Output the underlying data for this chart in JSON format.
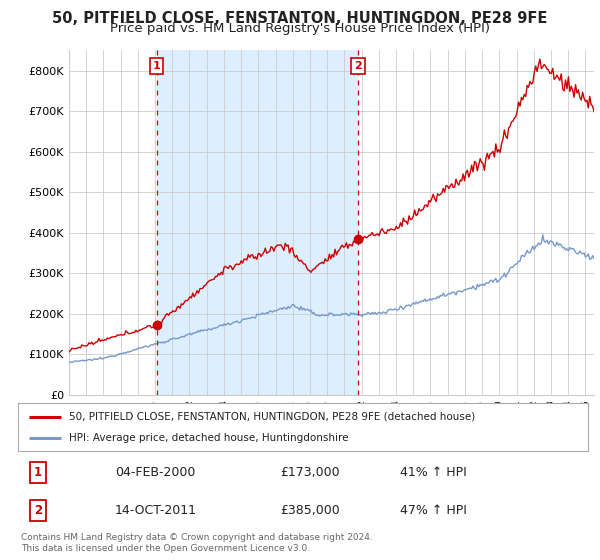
{
  "title": "50, PITFIELD CLOSE, FENSTANTON, HUNTINGDON, PE28 9FE",
  "subtitle": "Price paid vs. HM Land Registry's House Price Index (HPI)",
  "background_color": "#ffffff",
  "grid_color": "#cccccc",
  "yticks": [
    0,
    100000,
    200000,
    300000,
    400000,
    500000,
    600000,
    700000,
    800000
  ],
  "ytick_labels": [
    "£0",
    "£100K",
    "£200K",
    "£300K",
    "£400K",
    "£500K",
    "£600K",
    "£700K",
    "£800K"
  ],
  "ylim": [
    0,
    850000
  ],
  "xlim_start": 1995.0,
  "xlim_end": 2025.5,
  "sale1_x": 2000.09,
  "sale1_y": 173000,
  "sale1_label": "1",
  "sale1_date": "04-FEB-2000",
  "sale1_price": "£173,000",
  "sale1_hpi": "41% ↑ HPI",
  "sale2_x": 2011.79,
  "sale2_y": 385000,
  "sale2_label": "2",
  "sale2_date": "14-OCT-2011",
  "sale2_price": "£385,000",
  "sale2_hpi": "47% ↑ HPI",
  "line1_color": "#cc0000",
  "line2_color": "#7799cc",
  "shade_color": "#ddeeff",
  "legend1_label": "50, PITFIELD CLOSE, FENSTANTON, HUNTINGDON, PE28 9FE (detached house)",
  "legend2_label": "HPI: Average price, detached house, Huntingdonshire",
  "footer": "Contains HM Land Registry data © Crown copyright and database right 2024.\nThis data is licensed under the Open Government Licence v3.0.",
  "title_fontsize": 10.5,
  "subtitle_fontsize": 9.5
}
